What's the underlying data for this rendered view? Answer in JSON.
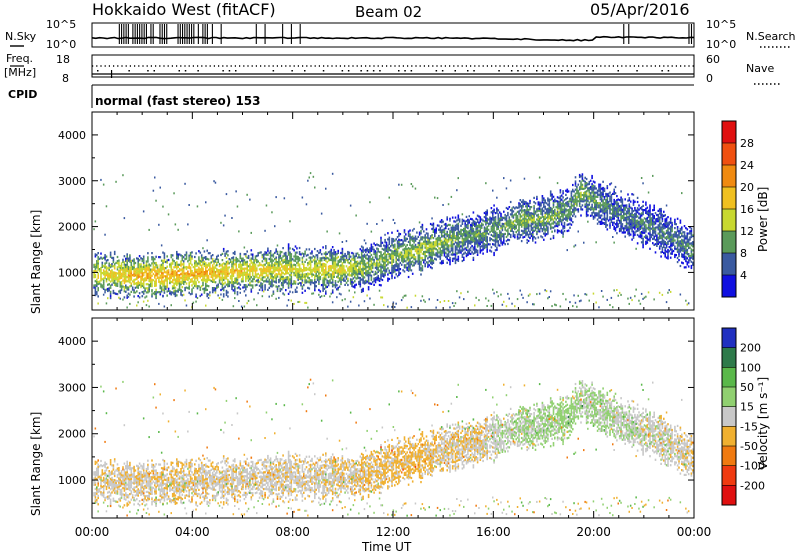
{
  "header": {
    "station": "Hokkaido West (fitACF)",
    "beam": "Beam 02",
    "date": "05/Apr/2016"
  },
  "strips": {
    "nsky_label": "N.Sky",
    "nsky_ticks": [
      "10^5",
      "10^0"
    ],
    "nsearch_label": "N.Search",
    "freq_label_1": "Freq.",
    "freq_label_2": "[MHz]",
    "freq_ticks": [
      "18",
      "8"
    ],
    "nave_ticks": [
      "60",
      "0"
    ],
    "nave_label": "Nave",
    "cpid_label": "CPID",
    "cpid_text": "normal (fast stereo) 153"
  },
  "axes": {
    "ylabel": "Slant Range [km]",
    "yticks": [
      "4000",
      "3000",
      "2000",
      "1000"
    ],
    "xticks": [
      "00:00",
      "04:00",
      "08:00",
      "12:00",
      "16:00",
      "20:00",
      "00:00"
    ],
    "xlabel": "Time UT"
  },
  "colorbars": {
    "power": {
      "label": "Power [dB]",
      "ticks": [
        "28",
        "24",
        "20",
        "16",
        "12",
        "8",
        "4"
      ],
      "colors": [
        "#e01010",
        "#f05010",
        "#f08a10",
        "#f0c020",
        "#c8d830",
        "#5a9a5a",
        "#3a5aa0",
        "#1010e0"
      ]
    },
    "velocity": {
      "label": "Velocity [m s⁻¹]",
      "ticks": [
        "200",
        "100",
        "50",
        "15",
        "-15",
        "-50",
        "-100",
        "-200"
      ],
      "colors": [
        "#2030c0",
        "#2e7a4a",
        "#5ab84a",
        "#90d070",
        "#c8c8c8",
        "#f0b030",
        "#f07a10",
        "#f03a10",
        "#e01010"
      ]
    }
  },
  "chart_data": [
    {
      "type": "heatmap",
      "title": "Power",
      "xlabel": "Time UT",
      "ylabel": "Slant Range [km]",
      "xlim": [
        "00:00",
        "24:00"
      ],
      "ylim": [
        180,
        4500
      ],
      "colorbar": "Power [dB]",
      "main_echo_band": {
        "time_h": [
          0,
          2,
          4,
          6,
          8,
          10,
          11,
          12,
          13,
          14,
          15,
          16,
          17,
          18,
          19,
          19.5,
          20,
          21,
          22,
          23,
          24
        ],
        "range_km": [
          1000,
          950,
          1000,
          1050,
          1100,
          1100,
          1150,
          1400,
          1500,
          1700,
          1800,
          1950,
          2150,
          2200,
          2400,
          2800,
          2600,
          2300,
          2100,
          1800,
          1500
        ],
        "power_db": [
          16,
          20,
          20,
          18,
          16,
          16,
          12,
          12,
          14,
          12,
          10,
          10,
          12,
          12,
          10,
          12,
          10,
          8,
          8,
          8,
          8
        ]
      }
    },
    {
      "type": "heatmap",
      "title": "Velocity",
      "xlabel": "Time UT",
      "ylabel": "Slant Range [km]",
      "xlim": [
        "00:00",
        "24:00"
      ],
      "ylim": [
        180,
        4500
      ],
      "colorbar": "Velocity [m s⁻¹]",
      "main_echo_band": {
        "time_h": [
          0,
          2,
          4,
          6,
          8,
          10,
          11,
          12,
          13,
          14,
          15,
          16,
          17,
          18,
          19,
          19.5,
          20,
          21,
          22,
          23,
          24
        ],
        "range_km": [
          1000,
          950,
          1000,
          1050,
          1100,
          1100,
          1150,
          1400,
          1500,
          1700,
          1800,
          1950,
          2150,
          2200,
          2400,
          2800,
          2600,
          2300,
          2100,
          1800,
          1500
        ],
        "velocity_ms": [
          -10,
          -10,
          -10,
          -5,
          -5,
          -10,
          -20,
          -20,
          -30,
          -10,
          -10,
          0,
          20,
          20,
          30,
          10,
          20,
          10,
          0,
          0,
          -10
        ]
      }
    }
  ]
}
